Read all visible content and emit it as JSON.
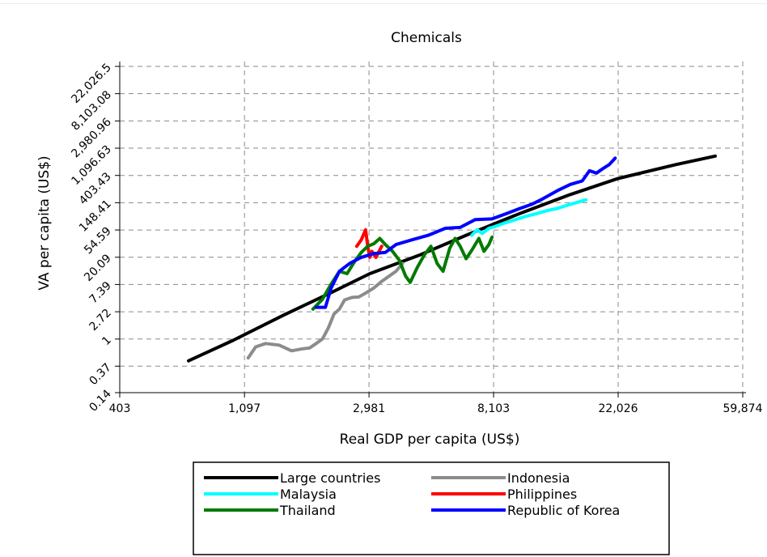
{
  "chart_data": {
    "type": "line",
    "title": "Chemicals",
    "xlabel": "Real GDP per capita (US$)",
    "ylabel": "VA per capita (US$)",
    "x_scale": "log",
    "y_scale": "log",
    "xlim": [
      403,
      59874
    ],
    "ylim": [
      0.14,
      22026.5
    ],
    "x_ticks": [
      403,
      1097,
      2981,
      8103,
      22026,
      59874
    ],
    "x_tick_labels": [
      "403",
      "1,097",
      "2,981",
      "8,103",
      "22,026",
      "59,874"
    ],
    "y_ticks": [
      0.14,
      0.37,
      1,
      2.72,
      7.39,
      20.09,
      54.59,
      148.41,
      403.43,
      1096.63,
      2980.96,
      8103.08,
      22026.5
    ],
    "y_tick_labels": [
      "0.14",
      "0.37",
      "1",
      "2.72",
      "7.39",
      "20.09",
      "54.59",
      "148.41",
      "403.43",
      "1,096.63",
      "2,980.96",
      "8,103.08",
      "22,026.5"
    ],
    "grid": true,
    "legend_position": "bottom",
    "series": [
      {
        "name": "Large countries",
        "color": "#000000",
        "points": [
          [
            700,
            0.45
          ],
          [
            1000,
            0.95
          ],
          [
            1500,
            2.4
          ],
          [
            2200,
            5.5
          ],
          [
            3000,
            11
          ],
          [
            4500,
            22
          ],
          [
            6500,
            45
          ],
          [
            10000,
            100
          ],
          [
            15000,
            200
          ],
          [
            22000,
            360
          ],
          [
            35000,
            600
          ],
          [
            48000,
            820
          ]
        ]
      },
      {
        "name": "Indonesia",
        "color": "#8c8c8c",
        "points": [
          [
            1130,
            0.5
          ],
          [
            1200,
            0.75
          ],
          [
            1300,
            0.85
          ],
          [
            1450,
            0.8
          ],
          [
            1600,
            0.65
          ],
          [
            1750,
            0.7
          ],
          [
            1850,
            0.72
          ],
          [
            1950,
            0.85
          ],
          [
            2050,
            1.0
          ],
          [
            2150,
            1.5
          ],
          [
            2250,
            2.5
          ],
          [
            2350,
            3.0
          ],
          [
            2450,
            4.2
          ],
          [
            2600,
            4.6
          ],
          [
            2750,
            4.7
          ],
          [
            2900,
            5.4
          ],
          [
            3100,
            6.5
          ],
          [
            3300,
            8.3
          ],
          [
            3500,
            10
          ],
          [
            3700,
            12
          ],
          [
            3900,
            16
          ]
        ]
      },
      {
        "name": "Malaysia",
        "color": "#00ffff",
        "points": [
          [
            6800,
            45
          ],
          [
            7100,
            55
          ],
          [
            7400,
            48
          ],
          [
            7800,
            58
          ],
          [
            8200,
            62
          ],
          [
            8800,
            70
          ],
          [
            9500,
            78
          ],
          [
            10500,
            90
          ],
          [
            11500,
            100
          ],
          [
            12500,
            112
          ],
          [
            13500,
            120
          ],
          [
            15000,
            140
          ],
          [
            17000,
            165
          ]
        ]
      },
      {
        "name": "Philippines",
        "color": "#ff0000",
        "points": [
          [
            2700,
            30
          ],
          [
            2800,
            38
          ],
          [
            2900,
            55
          ],
          [
            2950,
            30
          ],
          [
            3000,
            20
          ],
          [
            3050,
            25
          ],
          [
            3150,
            20
          ],
          [
            3300,
            30
          ]
        ]
      },
      {
        "name": "Thailand",
        "color": "#007a00",
        "points": [
          [
            1900,
            3
          ],
          [
            2050,
            4.3
          ],
          [
            2200,
            7.5
          ],
          [
            2350,
            12
          ],
          [
            2500,
            11
          ],
          [
            2650,
            17
          ],
          [
            2800,
            24
          ],
          [
            2950,
            30
          ],
          [
            3100,
            33
          ],
          [
            3250,
            40
          ],
          [
            3400,
            32
          ],
          [
            3600,
            25
          ],
          [
            3800,
            18
          ],
          [
            4000,
            10
          ],
          [
            4150,
            8
          ],
          [
            4400,
            14
          ],
          [
            4650,
            22
          ],
          [
            4900,
            30
          ],
          [
            5150,
            16
          ],
          [
            5400,
            12
          ],
          [
            5700,
            28
          ],
          [
            5950,
            40
          ],
          [
            6200,
            30
          ],
          [
            6500,
            19
          ],
          [
            6800,
            26
          ],
          [
            7200,
            40
          ],
          [
            7500,
            25
          ],
          [
            7800,
            32
          ],
          [
            8000,
            42
          ]
        ]
      },
      {
        "name": "Republic of Korea",
        "color": "#0000ff",
        "points": [
          [
            1950,
            3.2
          ],
          [
            2100,
            3.2
          ],
          [
            2200,
            6.5
          ],
          [
            2350,
            12
          ],
          [
            2550,
            16
          ],
          [
            2800,
            20
          ],
          [
            3100,
            23
          ],
          [
            3400,
            24
          ],
          [
            3700,
            32
          ],
          [
            4200,
            38
          ],
          [
            4800,
            45
          ],
          [
            5500,
            58
          ],
          [
            6200,
            60
          ],
          [
            7000,
            80
          ],
          [
            8000,
            82
          ],
          [
            9000,
            100
          ],
          [
            10000,
            120
          ],
          [
            11000,
            140
          ],
          [
            12000,
            170
          ],
          [
            13500,
            230
          ],
          [
            15000,
            290
          ],
          [
            16500,
            330
          ],
          [
            17500,
            480
          ],
          [
            18500,
            440
          ],
          [
            19500,
            520
          ],
          [
            20500,
            600
          ],
          [
            21500,
            760
          ]
        ]
      }
    ]
  }
}
